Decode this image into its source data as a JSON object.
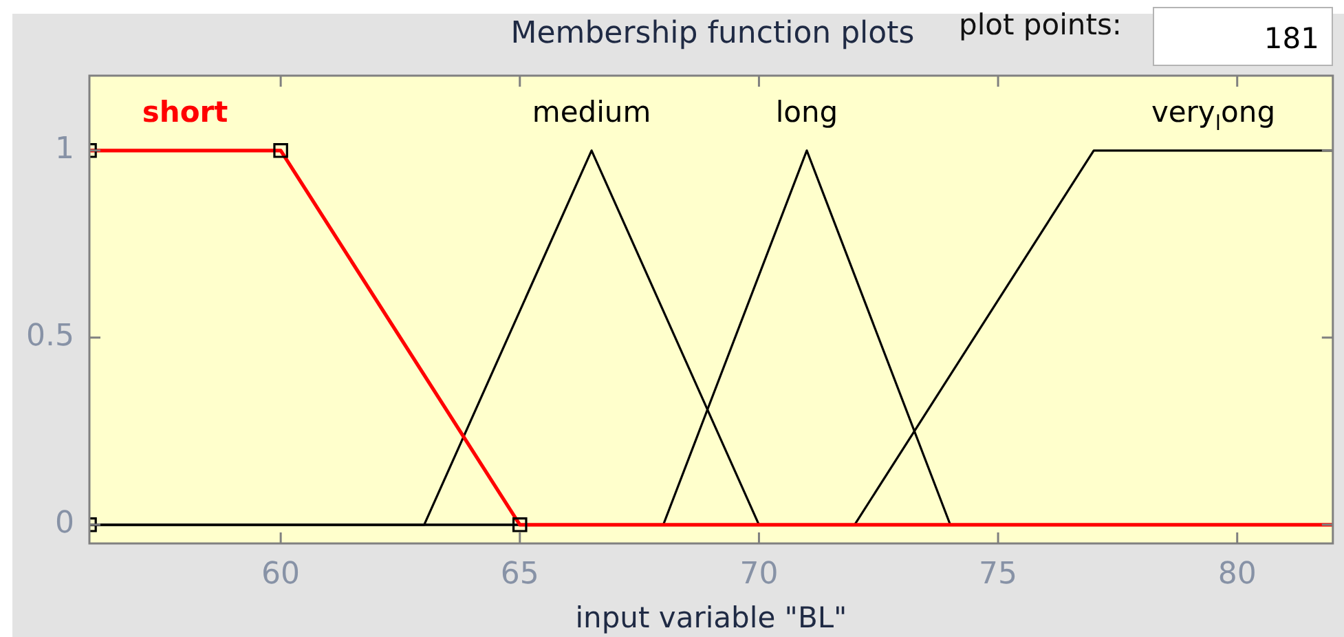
{
  "chart_data": {
    "type": "line",
    "title": "Membership function plots",
    "xlabel": "input variable \"BL\"",
    "annotations": [
      "plot points:",
      "181"
    ],
    "xlim": [
      56,
      82
    ],
    "xticks": [
      60,
      65,
      70,
      75,
      80
    ],
    "ylim": [
      -0.05,
      1.2
    ],
    "yticks": [
      0,
      0.5,
      1
    ],
    "line_style": "solid",
    "series": [
      {
        "name": "short",
        "color": "#ff0000",
        "x": [
          56,
          60,
          65,
          82
        ],
        "values": [
          1,
          1,
          0,
          0
        ]
      },
      {
        "name": "medium",
        "color": "#000000",
        "x": [
          56,
          63,
          66.5,
          70,
          82
        ],
        "values": [
          0,
          0,
          1,
          0,
          0
        ]
      },
      {
        "name": "long",
        "color": "#000000",
        "x": [
          56,
          68,
          71,
          74,
          82
        ],
        "values": [
          0,
          0,
          1,
          0,
          0
        ]
      },
      {
        "name": "very$_{l}$ong",
        "color": "#000000",
        "x": [
          56,
          72,
          77,
          82
        ],
        "values": [
          0,
          0,
          1,
          1
        ]
      },
      {
        "type": "scatter",
        "marker": "square",
        "color": "#000000",
        "x": [
          56,
          56,
          60,
          65
        ],
        "values": [
          0,
          1,
          1,
          0
        ]
      }
    ]
  }
}
